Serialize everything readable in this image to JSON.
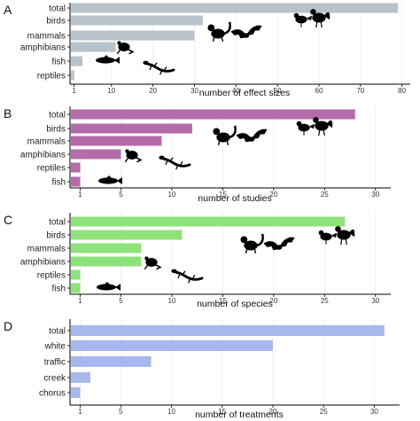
{
  "chart_data": [
    {
      "panel": "A",
      "type": "bar",
      "orientation": "horizontal",
      "categories": [
        "total",
        "birds",
        "mammals",
        "amphibians",
        "fish",
        "reptiles"
      ],
      "values": [
        79,
        32,
        30,
        11,
        3,
        1
      ],
      "xlabel": "number of effect sizes",
      "xticks": [
        1,
        10,
        20,
        30,
        40,
        50,
        60,
        70,
        80
      ],
      "xlim": [
        0,
        82
      ],
      "color": "#B8C2CA",
      "icons": [
        "bird-pair",
        "mammal-pair",
        "frog",
        "fish",
        "lizard"
      ]
    },
    {
      "panel": "B",
      "type": "bar",
      "orientation": "horizontal",
      "categories": [
        "total",
        "birds",
        "mammals",
        "amphibians",
        "reptiles",
        "fish"
      ],
      "values": [
        28,
        12,
        9,
        5,
        1,
        1
      ],
      "xlabel": "number of studies",
      "xticks": [
        1,
        5,
        10,
        15,
        20,
        25,
        30
      ],
      "xlim": [
        0,
        31.5
      ],
      "color": "#B46BA9",
      "icons": [
        "bird-pair",
        "mammal-pair",
        "frog",
        "lizard",
        "fish"
      ]
    },
    {
      "panel": "C",
      "type": "bar",
      "orientation": "horizontal",
      "categories": [
        "total",
        "birds",
        "mammals",
        "amphibians",
        "reptiles",
        "fish"
      ],
      "values": [
        27,
        11,
        7,
        7,
        1,
        1
      ],
      "xlabel": "number of species",
      "xticks": [
        1,
        5,
        10,
        15,
        20,
        25,
        30
      ],
      "xlim": [
        0,
        31.5
      ],
      "color": "#8EE27A",
      "icons": [
        "mammal-pair",
        "bird-pair",
        "frog",
        "lizard",
        "fish"
      ]
    },
    {
      "panel": "D",
      "type": "bar",
      "orientation": "horizontal",
      "categories": [
        "total",
        "white",
        "traffic",
        "creek",
        "chorus"
      ],
      "values": [
        31,
        20,
        8,
        2,
        1
      ],
      "xlabel": "number of treatments",
      "xticks": [
        1,
        5,
        10,
        15,
        20,
        25,
        30
      ],
      "xlim": [
        0,
        32.5
      ],
      "color": "#A8B7EC"
    }
  ]
}
